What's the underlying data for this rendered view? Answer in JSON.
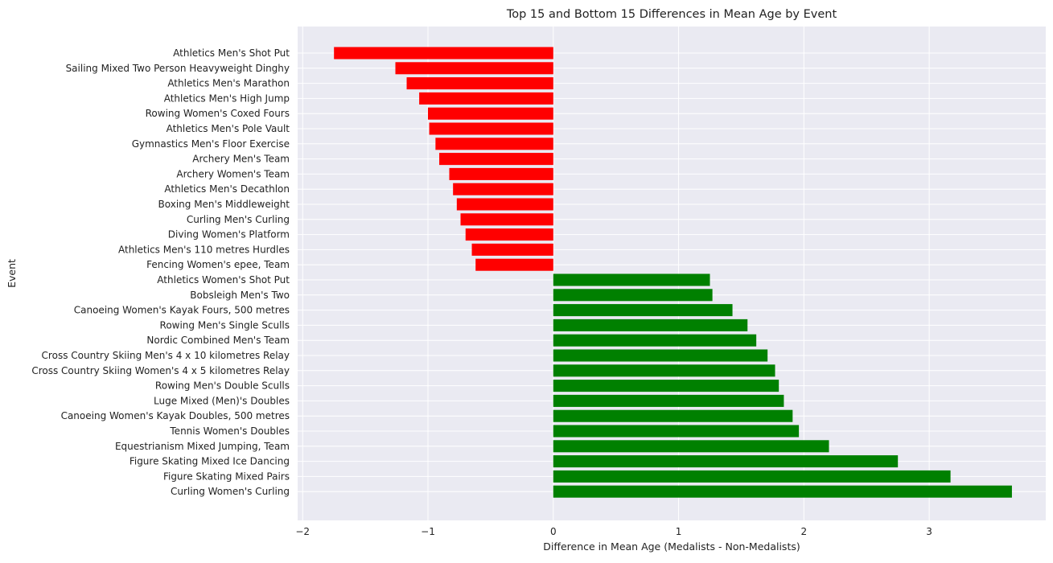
{
  "chart_data": {
    "type": "bar",
    "orientation": "horizontal",
    "title": "Top 15 and Bottom 15 Differences in Mean Age by Event",
    "xlabel": "Difference in Mean Age (Medalists - Non-Medalists)",
    "ylabel": "Event",
    "xlim": [
      -2.04,
      3.93
    ],
    "xticks": [
      -2,
      -1,
      0,
      1,
      2,
      3
    ],
    "grid": true,
    "background": "#eaeaf2",
    "grid_color": "#ffffff",
    "negative_color": "#ff0000",
    "positive_color": "#008000",
    "categories": [
      "Athletics Men's Shot Put",
      "Sailing Mixed Two Person Heavyweight Dinghy",
      "Athletics Men's Marathon",
      "Athletics Men's High Jump",
      "Rowing Women's Coxed Fours",
      "Athletics Men's Pole Vault",
      "Gymnastics Men's Floor Exercise",
      "Archery Men's Team",
      "Archery Women's Team",
      "Athletics Men's Decathlon",
      "Boxing Men's Middleweight",
      "Curling Men's Curling",
      "Diving Women's Platform",
      "Athletics Men's 110 metres Hurdles",
      "Fencing Women's epee, Team",
      "Athletics Women's Shot Put",
      "Bobsleigh Men's Two",
      "Canoeing Women's Kayak Fours, 500 metres",
      "Rowing Men's Single Sculls",
      "Nordic Combined Men's Team",
      "Cross Country Skiing Men's 4 x 10 kilometres Relay",
      "Cross Country Skiing Women's 4 x 5 kilometres Relay",
      "Rowing Men's Double Sculls",
      "Luge Mixed (Men)'s Doubles",
      "Canoeing Women's Kayak Doubles, 500 metres",
      "Tennis Women's Doubles",
      "Equestrianism Mixed Jumping, Team",
      "Figure Skating Mixed Ice Dancing",
      "Figure Skating Mixed Pairs",
      "Curling Women's Curling"
    ],
    "values": [
      -1.75,
      -1.26,
      -1.17,
      -1.07,
      -1.0,
      -0.99,
      -0.94,
      -0.91,
      -0.83,
      -0.8,
      -0.77,
      -0.74,
      -0.7,
      -0.65,
      -0.62,
      1.25,
      1.27,
      1.43,
      1.55,
      1.62,
      1.71,
      1.77,
      1.8,
      1.84,
      1.91,
      1.96,
      2.2,
      2.75,
      3.17,
      3.66
    ]
  }
}
